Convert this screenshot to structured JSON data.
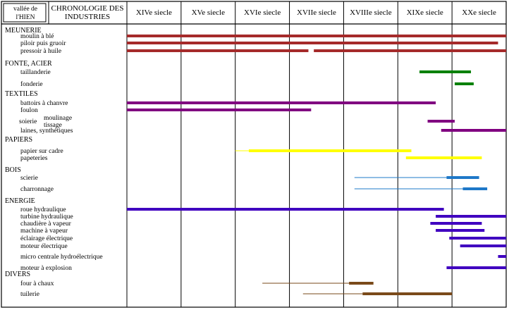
{
  "chart_data": {
    "type": "bar",
    "corner": {
      "line1": "vallée de",
      "line2": "l'HIEN"
    },
    "title": {
      "line1": "CHRONOLOGIE DES",
      "line2": "INDUSTRIES"
    },
    "centuries": [
      "XIVe siecle",
      "XVe siecle",
      "XVIe siecle",
      "XVIIe siecle",
      "XVIIIe siecle",
      "XIXe siecle",
      "XXe siecle"
    ],
    "x_range": [
      1300,
      2000
    ],
    "categories": [
      {
        "name": "MEUNERIE",
        "items": [
          {
            "label": "moulin à blé",
            "bars": [
              [
                1300,
                2000
              ]
            ],
            "color": "#a52a2a"
          },
          {
            "label": "piloir puis gruoir",
            "bars": [
              [
                1300,
                1985
              ]
            ],
            "color": "#a52a2a"
          },
          {
            "label": "pressoir à huile",
            "bars": [
              [
                1300,
                1635
              ],
              [
                1645,
                2000
              ]
            ],
            "color": "#a52a2a"
          }
        ]
      },
      {
        "name": "FONTE, ACIER",
        "items": [
          {
            "label": "taillanderie",
            "bars": [
              [
                1840,
                1935
              ]
            ],
            "color": "#008000"
          },
          {
            "label": "fonderie",
            "bars": [
              [
                1905,
                1940
              ]
            ],
            "color": "#008000"
          }
        ]
      },
      {
        "name": "TEXTILES",
        "items": [
          {
            "label": "battoirs à chanvre",
            "bars": [
              [
                1300,
                1870
              ]
            ],
            "color": "#800080"
          },
          {
            "label": "foulon",
            "bars": [
              [
                1300,
                1640
              ]
            ],
            "color": "#800080"
          },
          {
            "label": "soierie",
            "sublabels": [
              "moulinage",
              "tissage"
            ],
            "bars": [
              [
                1855,
                1905
              ]
            ],
            "color": "#800080"
          },
          {
            "label": "laines, synthétiques",
            "bars": [
              [
                1880,
                2000
              ]
            ],
            "color": "#800080"
          }
        ]
      },
      {
        "name": "PAPIERS",
        "items": [
          {
            "label": "papier sur cadre",
            "bars": [
              [
                1525,
                1825
              ]
            ],
            "color": "#ffff00",
            "thin": [
              [
                1500,
                1525
              ]
            ]
          },
          {
            "label": "papeteries",
            "bars": [
              [
                1815,
                1955
              ]
            ],
            "color": "#ffff00"
          }
        ]
      },
      {
        "name": "BOIS",
        "items": [
          {
            "label": "scierie",
            "bars": [
              [
                1890,
                1950
              ]
            ],
            "color": "#1e78c8",
            "thin": [
              [
                1720,
                1890
              ]
            ]
          },
          {
            "label": "charronnage",
            "bars": [
              [
                1920,
                1965
              ]
            ],
            "color": "#1e78c8",
            "thin": [
              [
                1720,
                1920
              ]
            ]
          }
        ]
      },
      {
        "name": "ENERGIE",
        "items": [
          {
            "label": "roue hydraulique",
            "bars": [
              [
                1300,
                1885
              ]
            ],
            "color": "#4000c0"
          },
          {
            "label": "turbine hydraulique",
            "bars": [
              [
                1870,
                2000
              ]
            ],
            "color": "#4000c0"
          },
          {
            "label": "chaudière à vapeur",
            "bars": [
              [
                1860,
                1955
              ]
            ],
            "color": "#4000c0"
          },
          {
            "label": "machine à vapeur",
            "bars": [
              [
                1870,
                1960
              ]
            ],
            "color": "#4000c0"
          },
          {
            "label": "éclairage électrique",
            "bars": [
              [
                1895,
                2000
              ]
            ],
            "color": "#4000c0"
          },
          {
            "label": "moteur électrique",
            "bars": [
              [
                1915,
                2000
              ]
            ],
            "color": "#4000c0"
          },
          {
            "label": "micro centrale hydroélectrique",
            "bars": [
              [
                1985,
                2000
              ]
            ],
            "color": "#4000c0"
          },
          {
            "label": "moteur à explosion",
            "bars": [
              [
                1890,
                2000
              ]
            ],
            "color": "#4000c0"
          }
        ]
      },
      {
        "name": "DIVERS",
        "items": [
          {
            "label": "four à chaux",
            "bars": [
              [
                1710,
                1755
              ]
            ],
            "color": "#7a4a1a",
            "thin": [
              [
                1550,
                1710
              ]
            ]
          },
          {
            "label": "tuilerie",
            "bars": [
              [
                1735,
                1900
              ]
            ],
            "color": "#7a4a1a",
            "thin": [
              [
                1625,
                1735
              ]
            ]
          }
        ]
      }
    ]
  }
}
